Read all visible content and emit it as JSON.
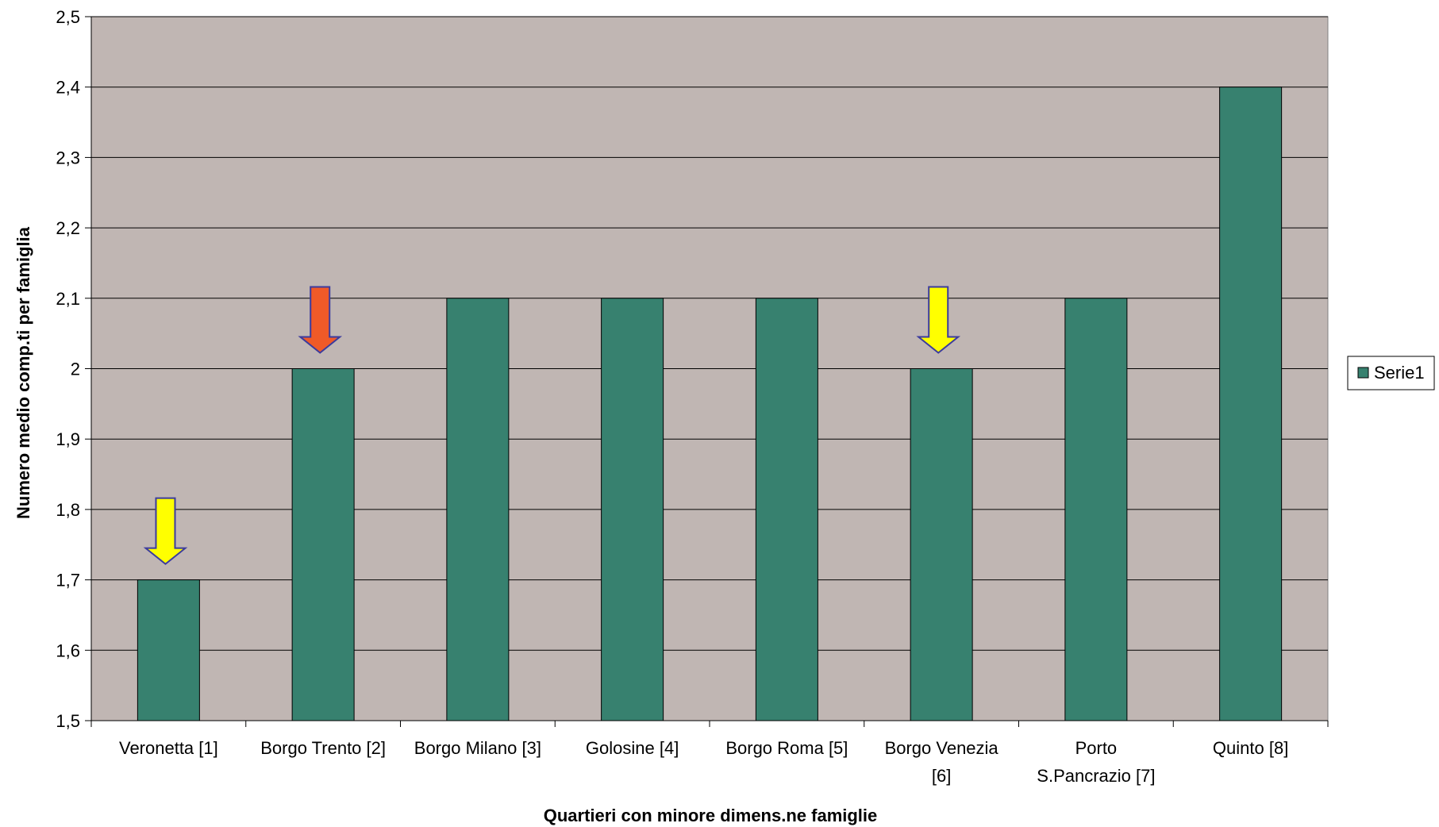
{
  "chart_data": {
    "type": "bar",
    "title": "",
    "xlabel": "Quartieri con minore dimens.ne famiglie",
    "ylabel": "Numero medio comp.ti  per famiglia",
    "ylim": [
      1.5,
      2.5
    ],
    "yticks": [
      "1,5",
      "1,6",
      "1,7",
      "1,8",
      "1,9",
      "2",
      "2,1",
      "2,2",
      "2,3",
      "2,4",
      "2,5"
    ],
    "ytick_values": [
      1.5,
      1.6,
      1.7,
      1.8,
      1.9,
      2.0,
      2.1,
      2.2,
      2.3,
      2.4,
      2.5
    ],
    "categories": [
      [
        "Veronetta [1]"
      ],
      [
        "Borgo Trento [2]"
      ],
      [
        "Borgo Milano [3]"
      ],
      [
        "Golosine [4]"
      ],
      [
        "Borgo Roma [5]"
      ],
      [
        "Borgo Venezia",
        "[6]"
      ],
      [
        "Porto",
        "S.Pancrazio [7]"
      ],
      [
        "Quinto [8]"
      ]
    ],
    "series": [
      {
        "name": "Serie1",
        "values": [
          1.7,
          2.0,
          2.1,
          2.1,
          2.1,
          2.0,
          2.1,
          2.4
        ]
      }
    ],
    "legend_position": "right",
    "grid": true,
    "annotations": [
      {
        "type": "down-arrow",
        "category_index": 0,
        "color": "#ffff00"
      },
      {
        "type": "down-arrow",
        "category_index": 1,
        "color": "#f05a28"
      },
      {
        "type": "down-arrow",
        "category_index": 5,
        "color": "#ffff00"
      }
    ]
  },
  "colors": {
    "bar": "#37816f",
    "plot_background": "#c0b6b3",
    "gridline": "#000000",
    "arrow_stroke": "#3b3b9e"
  }
}
